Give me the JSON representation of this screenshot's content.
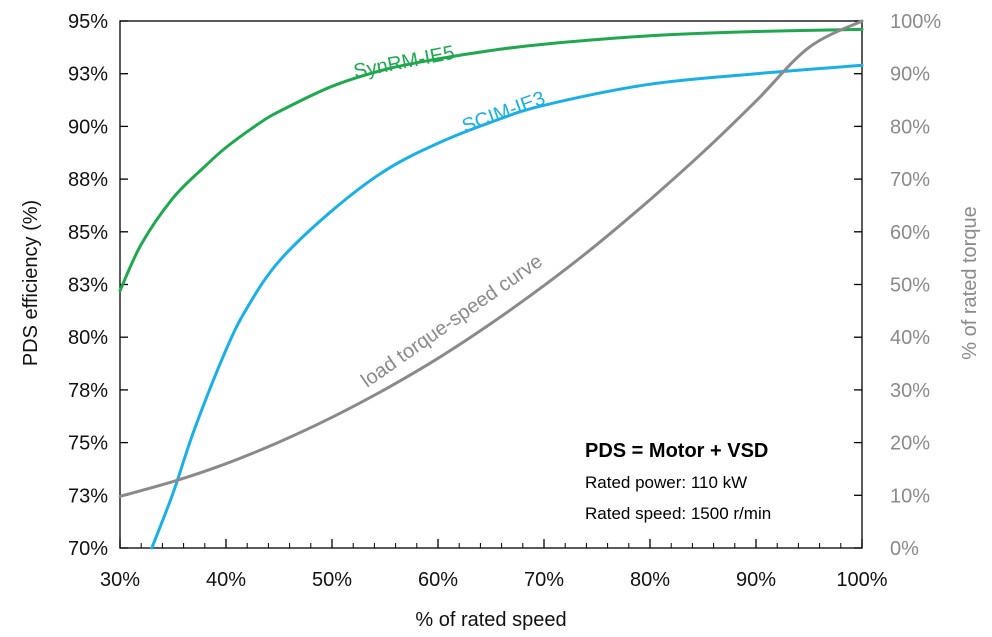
{
  "chart_data": {
    "type": "line",
    "xlabel": "% of rated speed",
    "ylabel": "PDS efficiency (%)",
    "y2label": "% of rated torque",
    "xlim": [
      30,
      100
    ],
    "ylim": [
      70,
      95
    ],
    "y2lim": [
      0,
      100
    ],
    "x_ticks": [
      "30%",
      "40%",
      "50%",
      "60%",
      "70%",
      "80%",
      "90%",
      "100%"
    ],
    "y_ticks": [
      "70%",
      "73%",
      "75%",
      "78%",
      "80%",
      "83%",
      "85%",
      "88%",
      "90%",
      "93%",
      "95%"
    ],
    "y2_ticks": [
      "0%",
      "10%",
      "20%",
      "30%",
      "40%",
      "50%",
      "60%",
      "70%",
      "80%",
      "90%",
      "100%"
    ],
    "grid": false,
    "series": [
      {
        "name": "SynRM-IE5",
        "axis": "left",
        "color": "#1fa84f",
        "x": [
          30,
          32,
          35,
          38,
          40,
          43,
          45,
          50,
          55,
          60,
          65,
          70,
          80,
          90,
          100
        ],
        "y": [
          82.2,
          84.4,
          86.6,
          88.1,
          89.0,
          90.1,
          90.7,
          91.9,
          92.7,
          93.2,
          93.6,
          93.9,
          94.3,
          94.5,
          94.6
        ]
      },
      {
        "name": "SCIM-IE3",
        "axis": "left",
        "color": "#1ab0e6",
        "x": [
          33,
          35,
          37,
          40,
          42,
          45,
          50,
          55,
          60,
          65,
          70,
          80,
          90,
          100
        ],
        "y": [
          70.0,
          72.6,
          75.6,
          79.4,
          81.4,
          83.6,
          86.0,
          87.9,
          89.2,
          90.2,
          91.0,
          92.0,
          92.5,
          92.9
        ]
      },
      {
        "name": "load torque-speed curve",
        "axis": "right",
        "color": "#8a8a8a",
        "x": [
          30,
          35,
          40,
          45,
          50,
          55,
          60,
          65,
          70,
          75,
          80,
          85,
          90,
          95,
          100
        ],
        "y": [
          9.8,
          12.6,
          16.0,
          20.1,
          24.8,
          30.1,
          36.0,
          42.6,
          49.8,
          57.6,
          66.1,
          75.1,
          84.8,
          95.0,
          100.0
        ]
      }
    ],
    "annotation": {
      "title": "PDS = Motor + VSD",
      "lines": [
        "Rated power: 110 kW",
        "Rated speed: 1500 r/min"
      ]
    }
  }
}
